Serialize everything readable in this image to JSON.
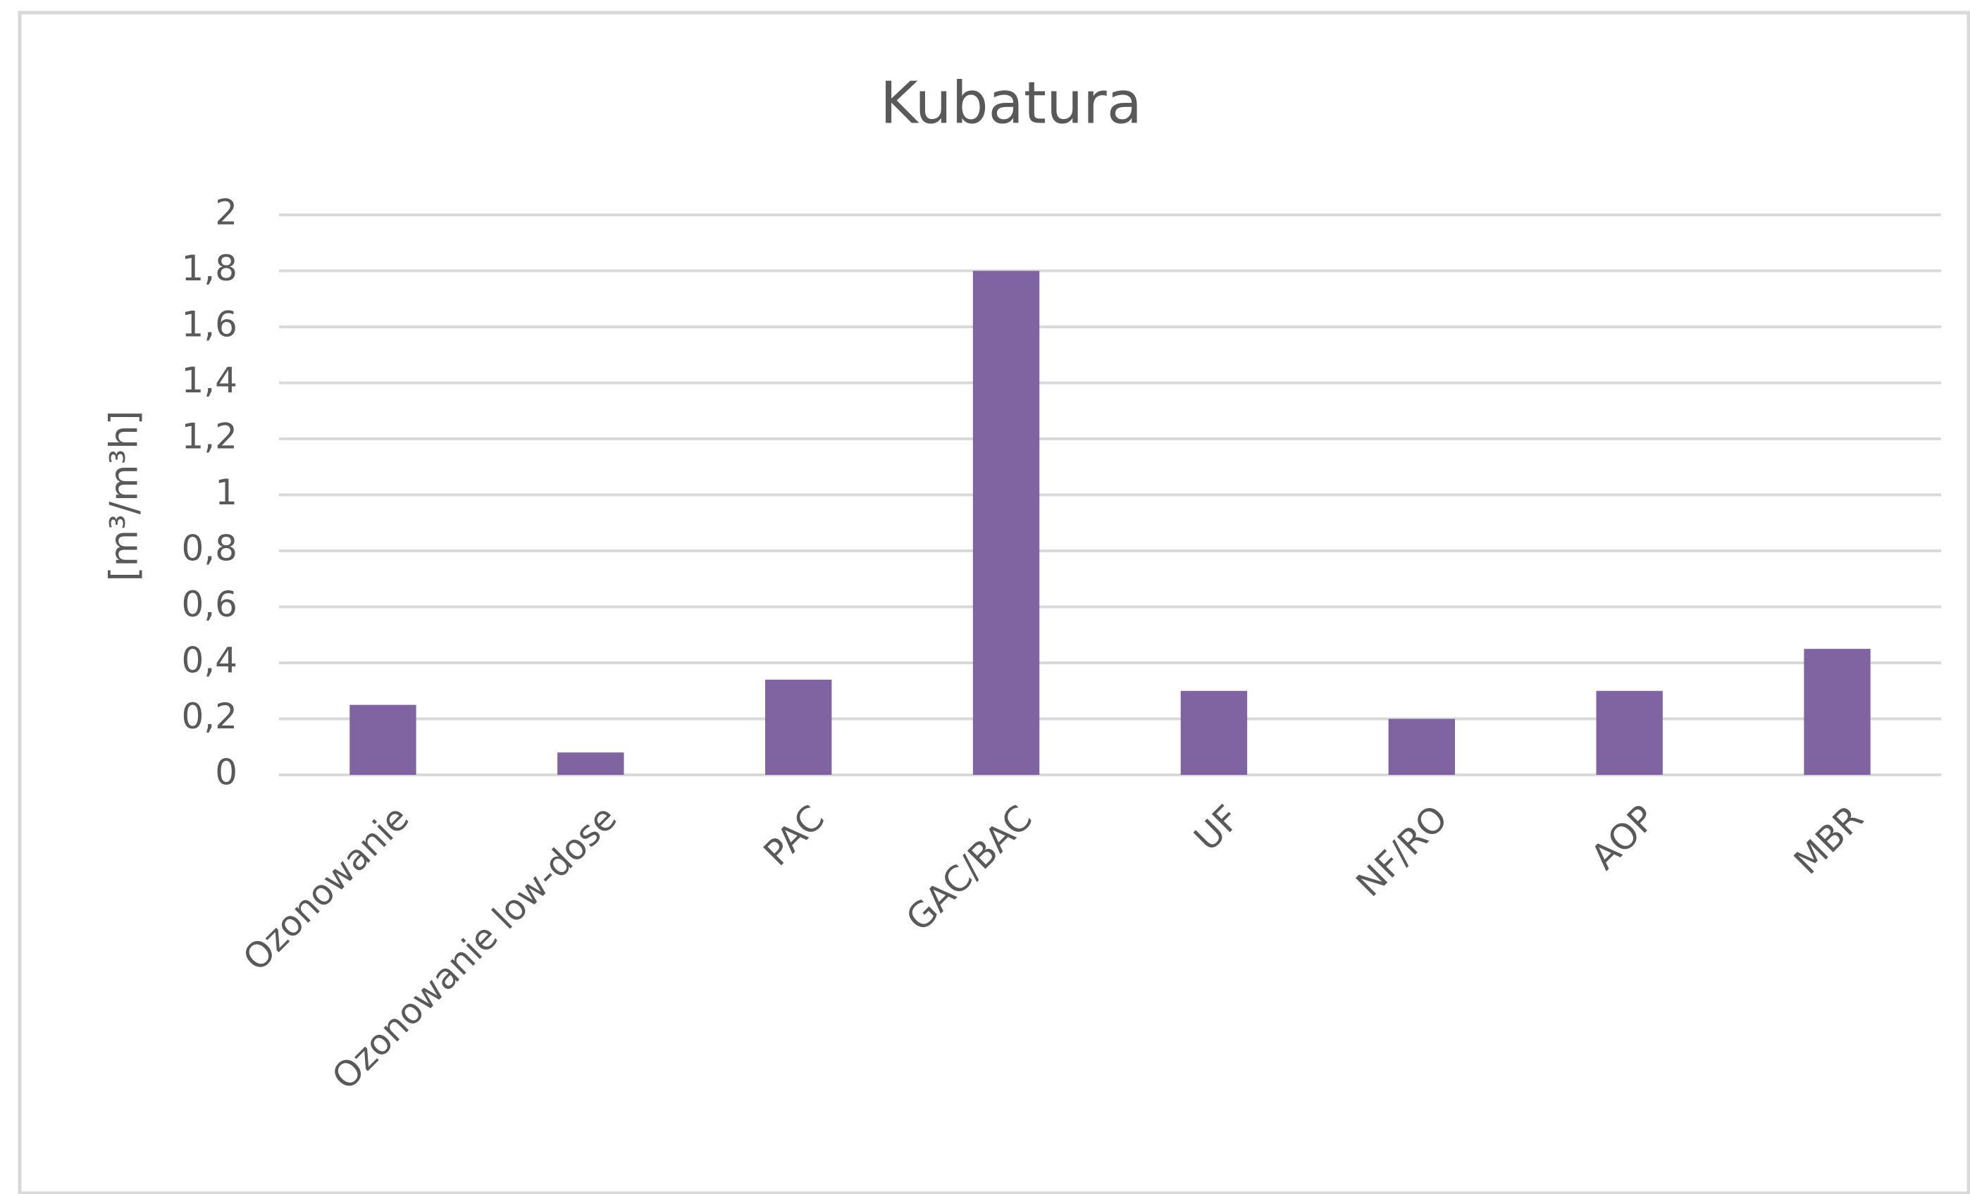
{
  "chart_data": {
    "type": "bar",
    "title": "Kubatura",
    "y_label": "[m³/m³h]",
    "categories": [
      "Ozonowanie",
      "Ozonowanie low-dose",
      "PAC",
      "GAC/BAC",
      "UF",
      "NF/RO",
      "AOP",
      "MBR"
    ],
    "values": [
      0.25,
      0.08,
      0.34,
      1.8,
      0.3,
      0.2,
      0.3,
      0.45
    ],
    "color": "#8064a2",
    "ylim": [
      0,
      2
    ],
    "yticks": [
      0,
      {
        "value": 0.2,
        "label": "0,2"
      },
      {
        "value": 0.4,
        "label": "0,4"
      },
      {
        "value": 0.6,
        "label": "0,6"
      },
      {
        "value": 0.8,
        "label": "0,8"
      },
      1,
      {
        "value": 1.2,
        "label": "1,2"
      },
      {
        "value": 1.4,
        "label": "1,4"
      },
      {
        "value": 1.6,
        "label": "1,6"
      },
      {
        "value": 1.8,
        "label": "1,8"
      },
      2
    ],
    "grid": true
  }
}
